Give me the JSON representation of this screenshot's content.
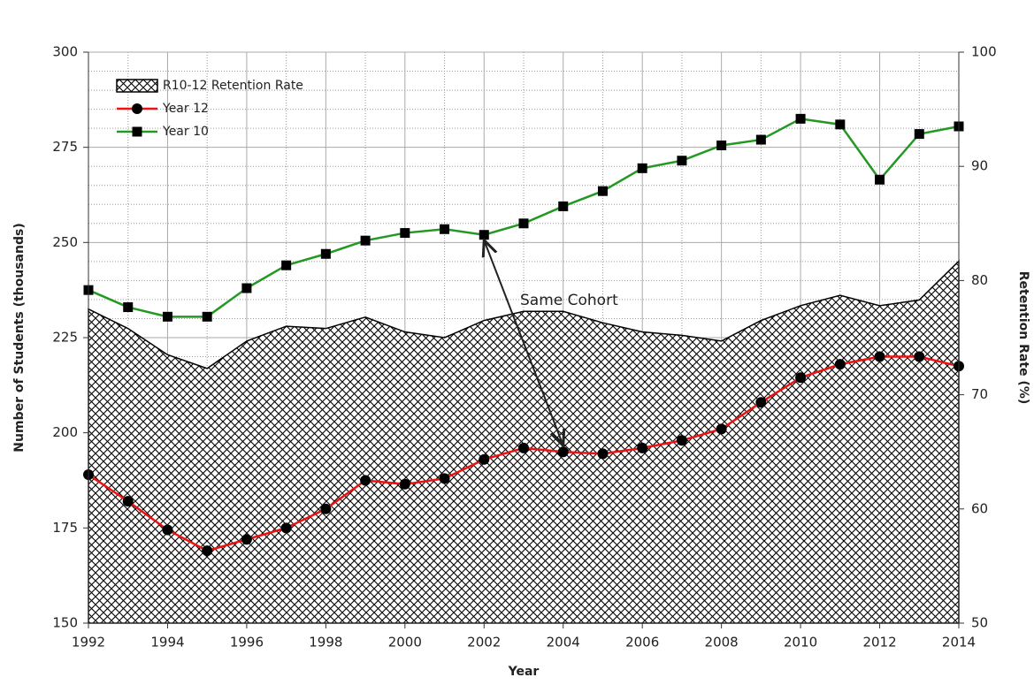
{
  "chart_data": {
    "type": "line",
    "x_label": "Year",
    "y_label": "Number of Students (thousands)",
    "y2_label": "Retention Rate (%)",
    "x": [
      1992,
      1993,
      1994,
      1995,
      1996,
      1997,
      1998,
      1999,
      2000,
      2001,
      2002,
      2003,
      2004,
      2005,
      2006,
      2007,
      2008,
      2009,
      2010,
      2011,
      2012,
      2013,
      2014
    ],
    "xlim": [
      1992,
      2014
    ],
    "xticks": [
      1992,
      1994,
      1996,
      1998,
      2000,
      2002,
      2004,
      2006,
      2008,
      2010,
      2012,
      2014
    ],
    "ylim": [
      150,
      300
    ],
    "yticks": [
      150,
      175,
      200,
      225,
      250,
      275,
      300
    ],
    "y2lim": [
      50,
      100
    ],
    "y2ticks": [
      50,
      60,
      70,
      80,
      90,
      100
    ],
    "grid": true,
    "legend": "upper left",
    "annotation": "Same Cohort",
    "series": [
      {
        "name": "R10-12 Retention Rate",
        "type": "area",
        "axis": "y2",
        "color": "#000000",
        "values": [
          77.5,
          75.8,
          73.5,
          72.3,
          74.7,
          76,
          75.8,
          76.8,
          75.5,
          75,
          76.5,
          77.3,
          77.3,
          76.3,
          75.5,
          75.2,
          74.7,
          76.5,
          77.8,
          78.7,
          77.8,
          78.3,
          81.7
        ]
      },
      {
        "name": "Year 12",
        "color": "#ee1111",
        "marker": "circle",
        "values": [
          189,
          182,
          174.5,
          169,
          172,
          175,
          180,
          187.5,
          186.5,
          188,
          193,
          196,
          195,
          194.5,
          196,
          198,
          201,
          208,
          214.5,
          218,
          220,
          220,
          217.5
        ]
      },
      {
        "name": "Year 10",
        "color": "#229922",
        "marker": "square",
        "values": [
          237.5,
          233,
          230.5,
          230.5,
          238,
          244,
          247,
          250.5,
          252.5,
          253.5,
          252,
          255,
          259.5,
          263.5,
          269.5,
          271.5,
          275.5,
          277,
          282.5,
          281,
          266.5,
          278.5,
          280.5
        ]
      }
    ]
  }
}
